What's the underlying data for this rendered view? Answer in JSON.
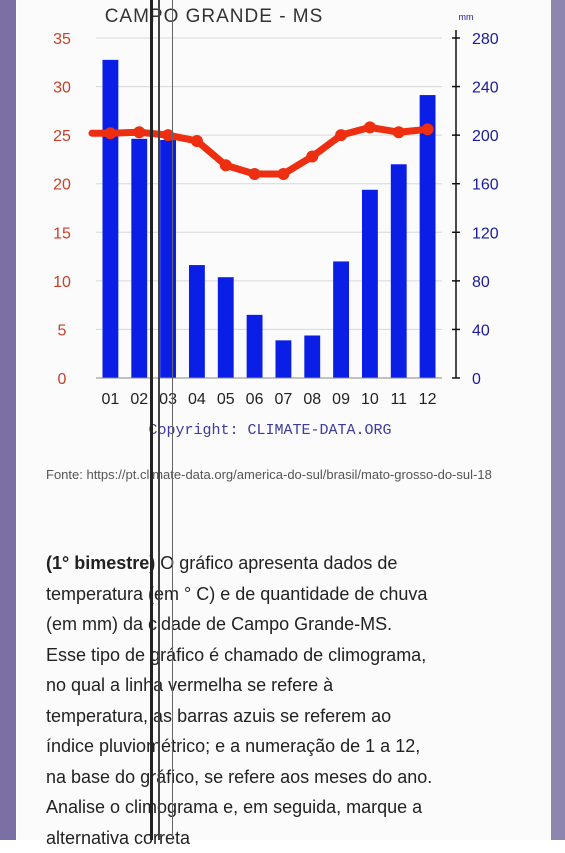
{
  "chart_data": {
    "type": "bar",
    "title": "CAMPO GRANDE - MS",
    "corner_label": "mm",
    "categories": [
      "01",
      "02",
      "03",
      "04",
      "05",
      "06",
      "07",
      "08",
      "09",
      "10",
      "11",
      "12"
    ],
    "series": [
      {
        "name": "precipitation",
        "type": "bar",
        "axis": "right",
        "unit": "mm",
        "color": "#0a1ee6",
        "values": [
          262,
          197,
          196,
          93,
          83,
          52,
          31,
          35,
          96,
          155,
          176,
          233
        ]
      },
      {
        "name": "temperature",
        "type": "line",
        "axis": "left",
        "unit": "°C",
        "color": "#ee2e10",
        "values": [
          25.2,
          25.3,
          25.0,
          24.4,
          21.9,
          21.0,
          21.0,
          22.8,
          25.0,
          25.8,
          25.3,
          25.6
        ]
      }
    ],
    "y_left": {
      "ticks": [
        "35",
        "30",
        "25",
        "20",
        "15",
        "10",
        "5",
        "0"
      ],
      "range": [
        0,
        35
      ],
      "color": "#c8402a"
    },
    "y_right": {
      "ticks": [
        "280",
        "240",
        "200",
        "160",
        "120",
        "80",
        "40",
        "0"
      ],
      "range": [
        0,
        280
      ],
      "color": "#1a1a9e"
    },
    "grid": true,
    "copyright": "Copyright: CLIMATE-DATA.ORG"
  },
  "source": {
    "text": "Fonte: https://pt.climate-data.org/america-do-sul/brasil/mato-grosso-do-sul-18"
  },
  "question": {
    "lead": "(1° bimestre)",
    "line1_rest": " O gráfico apresenta dados de",
    "line2": "temperatura (em ° C) e de quantidade de chuva",
    "line3": "(em mm) da cidade de Campo Grande-MS.",
    "line4": "Esse tipo de gráfico é chamado de climograma,",
    "line5": "no qual a linha vermelha se refere à",
    "line6": "temperatura, as barras azuis se referem ao",
    "line7": "índice pluviométrico; e a numeração de 1 a 12,",
    "line8": "na base do gráfico, se refere aos meses do ano.",
    "line9": "Analise o climograma e, em seguida, marque a",
    "line10": "alternativa correta"
  }
}
